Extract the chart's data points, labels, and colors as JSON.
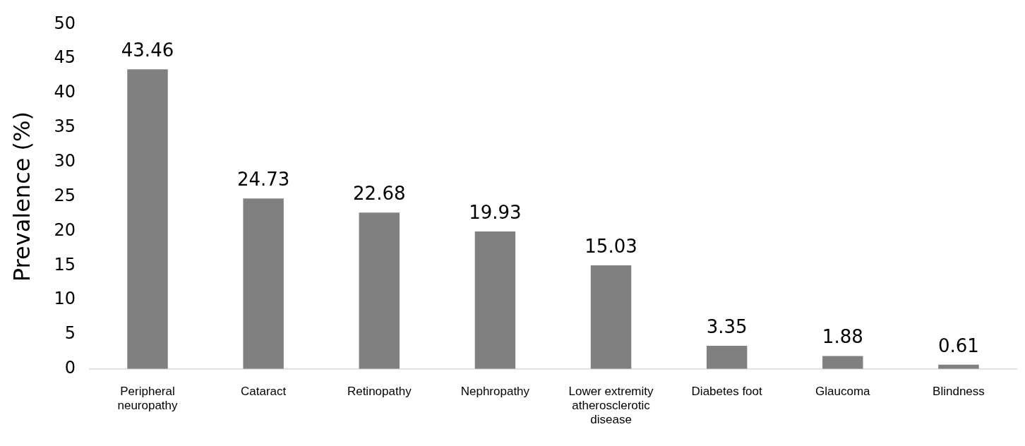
{
  "chart_data": {
    "type": "bar",
    "ylabel": "Prevalence (%)",
    "categories": [
      "Peripheral neuropathy",
      "Cataract",
      "Retinopathy",
      "Nephropathy",
      "Lower extremity atherosclerotic disease",
      "Diabetes foot",
      "Glaucoma",
      "Blindness"
    ],
    "values": [
      43.46,
      24.73,
      22.68,
      19.93,
      15.03,
      3.35,
      1.88,
      0.61
    ],
    "color": "#808080",
    "ylim": [
      0,
      50
    ],
    "yticks": [
      0,
      5,
      10,
      15,
      20,
      25,
      30,
      35,
      40,
      45,
      50
    ],
    "grid": false,
    "legend": false,
    "data_labels": true
  }
}
